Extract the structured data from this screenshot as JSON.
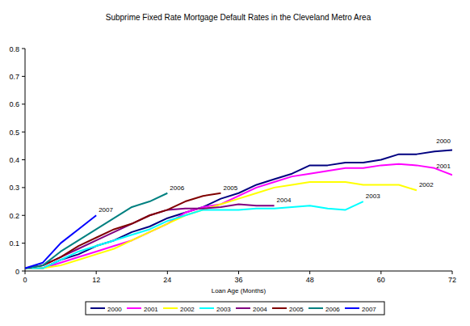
{
  "chart_data": {
    "type": "line",
    "title": "Subprime Fixed Rate Mortgage Default Rates in the Cleveland Metro Area",
    "x_label": "Loan Age (Months)",
    "x": [
      0,
      3,
      6,
      9,
      12,
      15,
      18,
      21,
      24,
      27,
      30,
      33,
      36,
      39,
      42,
      45,
      48,
      51,
      54,
      57,
      60,
      63,
      66,
      69,
      72
    ],
    "series": [
      {
        "name": "2000",
        "color": "#000080",
        "values": [
          0.01,
          0.01,
          0.04,
          0.06,
          0.09,
          0.11,
          0.14,
          0.16,
          0.19,
          0.21,
          0.23,
          0.26,
          0.28,
          0.31,
          0.33,
          0.35,
          0.38,
          0.38,
          0.39,
          0.39,
          0.4,
          0.42,
          0.42,
          0.43,
          0.435
        ]
      },
      {
        "name": "2001",
        "color": "#ff00ff",
        "values": [
          0.01,
          0.01,
          0.03,
          0.05,
          0.07,
          0.09,
          0.11,
          0.14,
          0.17,
          0.21,
          0.23,
          0.24,
          0.27,
          0.3,
          0.32,
          0.34,
          0.35,
          0.36,
          0.37,
          0.37,
          0.38,
          0.385,
          0.38,
          0.37,
          0.345
        ]
      },
      {
        "name": "2002",
        "color": "#ffff00",
        "values": [
          0.01,
          0.01,
          0.02,
          0.04,
          0.06,
          0.08,
          0.11,
          0.14,
          0.17,
          0.2,
          0.22,
          0.24,
          0.26,
          0.28,
          0.3,
          0.31,
          0.32,
          0.32,
          0.32,
          0.31,
          0.31,
          0.31,
          0.29,
          null,
          null
        ]
      },
      {
        "name": "2003",
        "color": "#00ffff",
        "values": [
          0.01,
          0.01,
          0.04,
          0.07,
          0.09,
          0.11,
          0.13,
          0.15,
          0.18,
          0.2,
          0.22,
          0.22,
          0.22,
          0.225,
          0.225,
          0.23,
          0.235,
          0.225,
          0.22,
          0.25,
          null,
          null,
          null,
          null,
          null
        ]
      },
      {
        "name": "2004",
        "color": "#800080",
        "values": [
          0.01,
          0.02,
          0.05,
          0.08,
          0.11,
          0.14,
          0.17,
          0.2,
          0.22,
          0.225,
          0.225,
          0.23,
          0.24,
          0.235,
          0.235,
          null,
          null,
          null,
          null,
          null,
          null,
          null,
          null,
          null,
          null
        ]
      },
      {
        "name": "2005",
        "color": "#800000",
        "values": [
          0.01,
          0.02,
          0.05,
          0.09,
          0.12,
          0.15,
          0.17,
          0.2,
          0.22,
          0.25,
          0.27,
          0.28,
          null,
          null,
          null,
          null,
          null,
          null,
          null,
          null,
          null,
          null,
          null,
          null,
          null
        ]
      },
      {
        "name": "2006",
        "color": "#008080",
        "values": [
          0.01,
          0.02,
          0.07,
          0.11,
          0.15,
          0.19,
          0.23,
          0.25,
          0.28,
          null,
          null,
          null,
          null,
          null,
          null,
          null,
          null,
          null,
          null,
          null,
          null,
          null,
          null,
          null,
          null
        ]
      },
      {
        "name": "2007",
        "color": "#0000ff",
        "values": [
          0.01,
          0.03,
          0.1,
          0.15,
          0.2,
          null,
          null,
          null,
          null,
          null,
          null,
          null,
          null,
          null,
          null,
          null,
          null,
          null,
          null,
          null,
          null,
          null,
          null,
          null,
          null
        ]
      }
    ],
    "xlim": [
      0,
      72
    ],
    "xticks": [
      0,
      12,
      24,
      36,
      48,
      60,
      72
    ],
    "ylim": [
      0,
      0.8
    ],
    "yticks": [
      0,
      0.1,
      0.2,
      0.3,
      0.4,
      0.5,
      0.6,
      0.7,
      0.8
    ],
    "grid": false,
    "legend": "bottom"
  }
}
